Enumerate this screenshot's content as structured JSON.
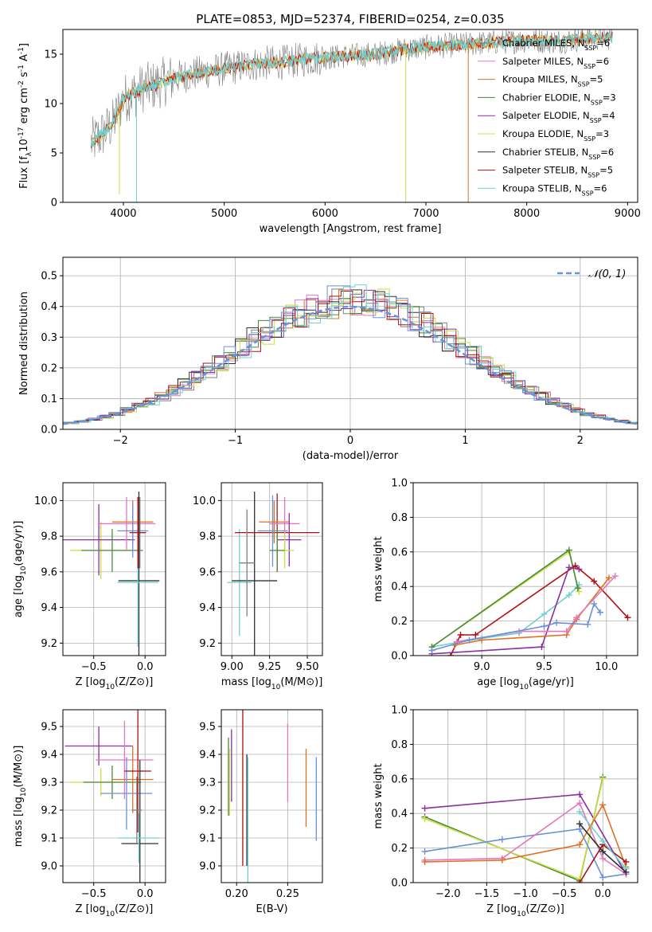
{
  "colors": {
    "chabrier_miles": "#808080",
    "salpeter_miles": "#e377c2",
    "kroupa_miles": "#e07020",
    "chabrier_elodie": "#4a8a3a",
    "salpeter_elodie": "#8e2da0",
    "kroupa_elodie": "#c8e040",
    "chabrier_stelib": "#303030",
    "salpeter_stelib": "#b01010",
    "kroupa_stelib": "#70d0d0",
    "blue_series": "#6a92d8",
    "normal_curve": "#6a92d8",
    "grid": "#b0b0b0"
  },
  "chart_data": [
    {
      "id": "spectrum",
      "type": "line",
      "title": "PLATE=0853, MJD=52374, FIBERID=0254, z=0.035",
      "xlabel": "wavelength [Angstrom, rest frame]",
      "ylabel": "Flux [f_λ10^-17 erg cm^-2 s^-1 A^-1]",
      "xlim": [
        3400,
        9100
      ],
      "ylim": [
        0,
        17.5
      ],
      "xticks": [
        "4000",
        "5000",
        "6000",
        "7000",
        "8000",
        "9000"
      ],
      "yticks": [
        "0",
        "5",
        "10",
        "15"
      ],
      "grid": false,
      "legend_position": "top-right",
      "legend": [
        {
          "label": "Chabrier MILES, N",
          "sub": "SSP",
          "suffix": "=6",
          "color": "chabrier_miles"
        },
        {
          "label": "Salpeter MILES, N",
          "sub": "SSP",
          "suffix": "=6",
          "color": "salpeter_miles"
        },
        {
          "label": "Kroupa MILES, N",
          "sub": "SSP",
          "suffix": "=5",
          "color": "kroupa_miles"
        },
        {
          "label": "Chabrier ELODIE, N",
          "sub": "SSP",
          "suffix": "=3",
          "color": "chabrier_elodie"
        },
        {
          "label": "Salpeter ELODIE, N",
          "sub": "SSP",
          "suffix": "=4",
          "color": "salpeter_elodie"
        },
        {
          "label": "Kroupa ELODIE, N",
          "sub": "SSP",
          "suffix": "=3",
          "color": "kroupa_elodie"
        },
        {
          "label": "Chabrier STELIB, N",
          "sub": "SSP",
          "suffix": "=6",
          "color": "chabrier_stelib"
        },
        {
          "label": "Salpeter STELIB, N",
          "sub": "SSP",
          "suffix": "=5",
          "color": "salpeter_stelib"
        },
        {
          "label": "Kroupa STELIB, N",
          "sub": "SSP",
          "suffix": "=6",
          "color": "kroupa_stelib"
        }
      ],
      "continuum": {
        "x": [
          3680,
          3800,
          3900,
          4000,
          4100,
          4200,
          4300,
          4500,
          4800,
          5000,
          5300,
          5600,
          5900,
          6200,
          6500,
          6800,
          7100,
          7400,
          7700,
          8000,
          8300,
          8600,
          8850
        ],
        "y": [
          6.0,
          7.0,
          8.0,
          10.5,
          11.0,
          11.6,
          11.8,
          12.6,
          13.2,
          13.5,
          14.0,
          14.2,
          14.6,
          14.8,
          15.0,
          15.5,
          15.8,
          16.0,
          16.2,
          16.4,
          16.3,
          16.6,
          16.7
        ]
      },
      "drops": [
        {
          "x": 3960,
          "y": 0.8,
          "color": "kroupa_elodie"
        },
        {
          "x": 4130,
          "y": 0.0,
          "color": "kroupa_stelib"
        },
        {
          "x": 6800,
          "y": 0.0,
          "color": "kroupa_elodie"
        },
        {
          "x": 7420,
          "y": 0.0,
          "color": "kroupa_miles"
        }
      ]
    },
    {
      "id": "residuals",
      "type": "histogram",
      "xlabel": "(data-model)/error",
      "ylabel": "Normed distribution",
      "xlim": [
        -2.5,
        2.5
      ],
      "ylim": [
        0,
        0.56
      ],
      "xticks": [
        "−2",
        "−1",
        "0",
        "1",
        "2"
      ],
      "yticks": [
        "0.0",
        "0.1",
        "0.2",
        "0.3",
        "0.4",
        "0.5"
      ],
      "grid": true,
      "legend": [
        {
          "label": "𝒩(0, 1)",
          "color": "normal_curve",
          "style": "dashed"
        }
      ],
      "legend_position": "top-right",
      "bin_width": 0.1
    },
    {
      "id": "age-vs-Z",
      "type": "errorbar",
      "xlabel": "Z [log10(Z/Z⊙)]",
      "ylabel": "age [log10(age/yr)]",
      "xlim": [
        -0.8,
        0.2
      ],
      "ylim": [
        9.13,
        10.1
      ],
      "xticks": [
        "−0.5",
        "0.0"
      ],
      "yticks": [
        "9.2",
        "9.4",
        "9.6",
        "9.8",
        "10.0"
      ],
      "grid": true,
      "points": [
        {
          "x": -0.43,
          "y": 9.72,
          "xerr": 0.3,
          "yerr": 0.16,
          "color": "kroupa_elodie"
        },
        {
          "x": -0.45,
          "y": 9.78,
          "xerr": 0.35,
          "yerr": 0.2,
          "color": "salpeter_elodie"
        },
        {
          "x": -0.32,
          "y": 9.72,
          "xerr": 0.3,
          "yerr": 0.12,
          "color": "chabrier_elodie"
        },
        {
          "x": -0.18,
          "y": 9.87,
          "xerr": 0.28,
          "yerr": 0.15,
          "color": "salpeter_miles"
        },
        {
          "x": -0.12,
          "y": 9.88,
          "xerr": 0.2,
          "yerr": 0.12,
          "color": "kroupa_miles"
        },
        {
          "x": -0.12,
          "y": 9.83,
          "xerr": 0.15,
          "yerr": 0.15,
          "color": "blue_series"
        },
        {
          "x": -0.05,
          "y": 9.82,
          "xerr": 0.05,
          "yerr": 0.2,
          "color": "chabrier_miles"
        },
        {
          "x": -0.06,
          "y": 9.55,
          "xerr": 0.2,
          "yerr": 0.5,
          "color": "chabrier_stelib"
        },
        {
          "x": -0.07,
          "y": 9.54,
          "xerr": 0.2,
          "yerr": 0.36,
          "color": "kroupa_stelib"
        },
        {
          "x": -0.07,
          "y": 9.82,
          "xerr": 0.08,
          "yerr": 0.2,
          "color": "salpeter_stelib"
        }
      ]
    },
    {
      "id": "age-vs-mass",
      "type": "errorbar",
      "xlabel": "mass [log10(M/M⊙)]",
      "ylabel": "",
      "xlim": [
        8.93,
        9.6
      ],
      "ylim": [
        9.13,
        10.1
      ],
      "xticks": [
        "9.00",
        "9.25",
        "9.50"
      ],
      "yticks": [
        "9.2",
        "9.4",
        "9.6",
        "9.8",
        "10.0"
      ],
      "grid": true,
      "points": [
        {
          "x": 9.05,
          "y": 9.54,
          "xerr": 0.08,
          "yerr": 0.3,
          "color": "kroupa_stelib"
        },
        {
          "x": 9.15,
          "y": 9.55,
          "xerr": 0.15,
          "yerr": 0.5,
          "color": "chabrier_stelib"
        },
        {
          "x": 9.3,
          "y": 9.82,
          "xerr": 0.28,
          "yerr": 0.22,
          "color": "salpeter_stelib"
        },
        {
          "x": 9.27,
          "y": 9.83,
          "xerr": 0.1,
          "yerr": 0.2,
          "color": "blue_series"
        },
        {
          "x": 9.28,
          "y": 9.88,
          "xerr": 0.1,
          "yerr": 0.12,
          "color": "kroupa_miles"
        },
        {
          "x": 9.35,
          "y": 9.87,
          "xerr": 0.1,
          "yerr": 0.15,
          "color": "salpeter_miles"
        },
        {
          "x": 9.38,
          "y": 9.78,
          "xerr": 0.08,
          "yerr": 0.15,
          "color": "salpeter_elodie"
        },
        {
          "x": 9.35,
          "y": 9.72,
          "xerr": 0.06,
          "yerr": 0.1,
          "color": "kroupa_elodie"
        },
        {
          "x": 9.3,
          "y": 9.72,
          "xerr": 0.05,
          "yerr": 0.12,
          "color": "chabrier_elodie"
        },
        {
          "x": 9.1,
          "y": 9.65,
          "xerr": 0.05,
          "yerr": 0.3,
          "color": "chabrier_miles"
        }
      ]
    },
    {
      "id": "weight-vs-age",
      "type": "line",
      "xlabel": "age [log10(age/yr)]",
      "ylabel": "mass weight",
      "xlim": [
        8.45,
        10.25
      ],
      "ylim": [
        0,
        1.0
      ],
      "xticks": [
        "9.0",
        "9.5",
        "10.0"
      ],
      "yticks": [
        "0.0",
        "0.2",
        "0.4",
        "0.6",
        "0.8",
        "1.0"
      ],
      "grid": true,
      "series": [
        {
          "color": "kroupa_stelib",
          "x": [
            8.6,
            9.0,
            9.3,
            9.5,
            9.7,
            9.78
          ],
          "y": [
            0.05,
            0.1,
            0.13,
            0.24,
            0.35,
            0.41
          ]
        },
        {
          "color": "kroupa_elodie",
          "x": [
            8.6,
            9.7,
            9.78
          ],
          "y": [
            0.05,
            0.6,
            0.37
          ]
        },
        {
          "color": "chabrier_elodie",
          "x": [
            8.6,
            9.7,
            9.77
          ],
          "y": [
            0.05,
            0.61,
            0.39
          ]
        },
        {
          "color": "salpeter_stelib",
          "x": [
            8.75,
            8.83,
            8.95,
            9.75,
            9.9,
            10.17
          ],
          "y": [
            0.0,
            0.12,
            0.12,
            0.52,
            0.43,
            0.22
          ]
        },
        {
          "color": "salpeter_elodie",
          "x": [
            8.6,
            9.48,
            9.7,
            9.78
          ],
          "y": [
            0.01,
            0.05,
            0.51,
            0.5
          ]
        },
        {
          "color": "kroupa_miles",
          "x": [
            8.78,
            9.0,
            9.68,
            9.76,
            10.02
          ],
          "y": [
            0.06,
            0.09,
            0.12,
            0.21,
            0.45
          ]
        },
        {
          "color": "salpeter_miles",
          "x": [
            8.8,
            9.3,
            9.68,
            9.76,
            10.07
          ],
          "y": [
            0.08,
            0.14,
            0.14,
            0.22,
            0.46
          ]
        },
        {
          "color": "blue_series",
          "x": [
            8.6,
            8.9,
            9.5,
            9.6,
            9.85,
            9.9,
            9.95
          ],
          "y": [
            0.03,
            0.09,
            0.17,
            0.19,
            0.18,
            0.3,
            0.25
          ]
        }
      ]
    },
    {
      "id": "mass-vs-Z",
      "type": "errorbar",
      "xlabel": "Z [log10(Z/Z⊙)]",
      "ylabel": "mass [log10(M/M⊙)]",
      "xlim": [
        -0.8,
        0.2
      ],
      "ylim": [
        8.94,
        9.56
      ],
      "xticks": [
        "−0.5",
        "0.0"
      ],
      "yticks": [
        "9.0",
        "9.1",
        "9.2",
        "9.3",
        "9.4",
        "9.5"
      ],
      "grid": true,
      "points": [
        {
          "x": -0.45,
          "y": 9.43,
          "xerr": 0.33,
          "yerr": 0.07,
          "color": "salpeter_elodie"
        },
        {
          "x": -0.43,
          "y": 9.3,
          "xerr": 0.3,
          "yerr": 0.05,
          "color": "kroupa_elodie"
        },
        {
          "x": -0.32,
          "y": 9.3,
          "xerr": 0.28,
          "yerr": 0.06,
          "color": "chabrier_elodie"
        },
        {
          "x": -0.2,
          "y": 9.38,
          "xerr": 0.28,
          "yerr": 0.14,
          "color": "salpeter_miles"
        },
        {
          "x": -0.12,
          "y": 9.31,
          "xerr": 0.2,
          "yerr": 0.12,
          "color": "kroupa_miles"
        },
        {
          "x": -0.18,
          "y": 9.26,
          "xerr": 0.25,
          "yerr": 0.13,
          "color": "blue_series"
        },
        {
          "x": -0.07,
          "y": 9.34,
          "xerr": 0.13,
          "yerr": 0.22,
          "color": "salpeter_stelib"
        },
        {
          "x": -0.05,
          "y": 9.08,
          "xerr": 0.18,
          "yerr": 0.3,
          "color": "chabrier_stelib"
        },
        {
          "x": -0.06,
          "y": 9.1,
          "xerr": 0.2,
          "yerr": 0.09,
          "color": "kroupa_stelib"
        },
        {
          "x": -0.08,
          "y": 9.2,
          "xerr": 0.05,
          "yerr": 0.12,
          "color": "chabrier_miles"
        }
      ]
    },
    {
      "id": "mass-vs-EBV",
      "type": "errorbar",
      "xlabel": "E(B-V)",
      "ylabel": "",
      "xlim": [
        0.185,
        0.284
      ],
      "ylim": [
        8.94,
        9.56
      ],
      "xticks": [
        "0.20",
        "0.25"
      ],
      "yticks": [
        "9.0",
        "9.1",
        "9.2",
        "9.3",
        "9.4",
        "9.5"
      ],
      "grid": true,
      "points": [
        {
          "x": 0.192,
          "y": 9.32,
          "xerr": 0,
          "yerr": 0.14,
          "color": "chabrier_elodie"
        },
        {
          "x": 0.193,
          "y": 9.3,
          "xerr": 0,
          "yerr": 0.12,
          "color": "kroupa_elodie"
        },
        {
          "x": 0.195,
          "y": 9.36,
          "xerr": 0,
          "yerr": 0.13,
          "color": "salpeter_elodie"
        },
        {
          "x": 0.206,
          "y": 9.28,
          "xerr": 0,
          "yerr": 0.28,
          "color": "salpeter_stelib"
        },
        {
          "x": 0.21,
          "y": 9.2,
          "xerr": 0,
          "yerr": 0.2,
          "color": "chabrier_stelib"
        },
        {
          "x": 0.211,
          "y": 9.16,
          "xerr": 0,
          "yerr": 0.23,
          "color": "kroupa_stelib"
        },
        {
          "x": 0.25,
          "y": 9.37,
          "xerr": 0,
          "yerr": 0.14,
          "color": "salpeter_miles"
        },
        {
          "x": 0.268,
          "y": 9.28,
          "xerr": 0,
          "yerr": 0.14,
          "color": "kroupa_miles"
        },
        {
          "x": 0.278,
          "y": 9.24,
          "xerr": 0,
          "yerr": 0.15,
          "color": "blue_series"
        }
      ]
    },
    {
      "id": "weight-vs-Z",
      "type": "line",
      "xlabel": "Z [log10(Z/Z⊙)]",
      "ylabel": "mass weight",
      "xlim": [
        -2.45,
        0.45
      ],
      "ylim": [
        0,
        1.0
      ],
      "xticks": [
        "−2.0",
        "−1.5",
        "−1.0",
        "−0.5",
        "0.0"
      ],
      "yticks": [
        "0.0",
        "0.2",
        "0.4",
        "0.6",
        "0.8",
        "1.0"
      ],
      "grid": true,
      "series": [
        {
          "color": "salpeter_elodie",
          "x": [
            -2.3,
            -0.3,
            0.3
          ],
          "y": [
            0.43,
            0.51,
            0.05
          ]
        },
        {
          "color": "chabrier_elodie",
          "x": [
            -2.3,
            -0.3,
            0.0
          ],
          "y": [
            0.38,
            0.01,
            0.61
          ]
        },
        {
          "color": "kroupa_elodie",
          "x": [
            -2.3,
            -0.3,
            0.0
          ],
          "y": [
            0.37,
            0.02,
            0.6
          ]
        },
        {
          "color": "blue_series",
          "x": [
            -2.3,
            -1.3,
            -0.3,
            0.0,
            0.3
          ],
          "y": [
            0.18,
            0.25,
            0.31,
            0.03,
            0.05
          ]
        },
        {
          "color": "salpeter_miles",
          "x": [
            -2.3,
            -1.3,
            -0.3,
            0.0,
            0.3
          ],
          "y": [
            0.13,
            0.14,
            0.46,
            0.14,
            0.05
          ]
        },
        {
          "color": "kroupa_miles",
          "x": [
            -2.3,
            -1.3,
            -0.3,
            0.0,
            0.3
          ],
          "y": [
            0.12,
            0.13,
            0.22,
            0.45,
            0.09
          ]
        },
        {
          "color": "salpeter_stelib",
          "x": [
            -0.3,
            0.0,
            0.3
          ],
          "y": [
            0.0,
            0.22,
            0.12
          ]
        },
        {
          "color": "kroupa_stelib",
          "x": [
            -0.3,
            0.0,
            0.3
          ],
          "y": [
            0.41,
            0.24,
            0.08
          ]
        },
        {
          "color": "chabrier_stelib",
          "x": [
            -0.3,
            0.0,
            0.3
          ],
          "y": [
            0.34,
            0.18,
            0.06
          ]
        }
      ]
    }
  ]
}
